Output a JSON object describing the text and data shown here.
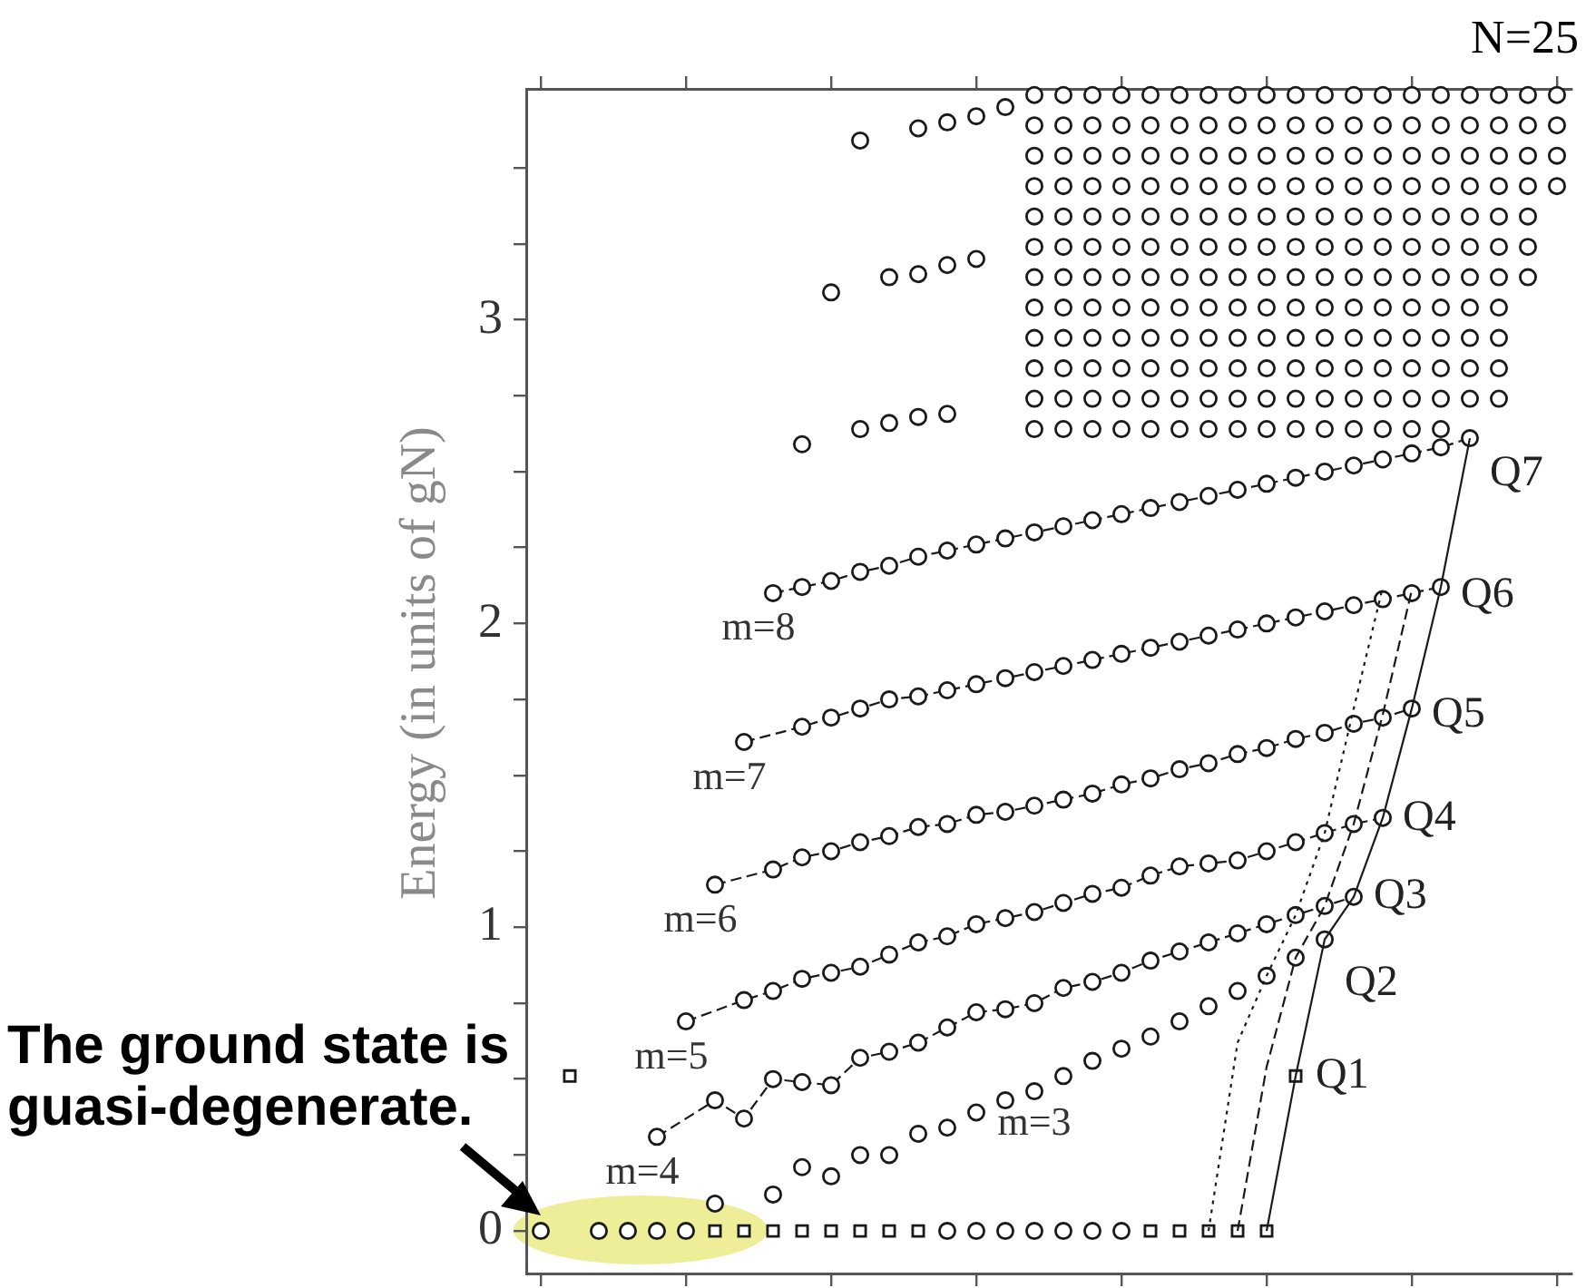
{
  "chart_data": {
    "type": "scatter",
    "title": "N=25",
    "ylabel": "Energy (in units of gN)",
    "categories": [
      null,
      null,
      null,
      null,
      null,
      null,
      null,
      null,
      null,
      null,
      null,
      null,
      null,
      null,
      null,
      null,
      null,
      null,
      null,
      null,
      null,
      null,
      null,
      null,
      null,
      null,
      null,
      null,
      null,
      null,
      null,
      null,
      null,
      null,
      null,
      null
    ],
    "ylim": [
      -0.14,
      3.76
    ],
    "yticks": [
      0,
      {
        "value": 0.25,
        "label": null
      },
      {
        "value": 0.5,
        "label": null
      },
      {
        "value": 0.75,
        "label": null
      },
      1,
      {
        "value": 1.25,
        "label": null
      },
      {
        "value": 1.5,
        "label": null
      },
      {
        "value": 1.75,
        "label": null
      },
      2,
      {
        "value": 2.25,
        "label": null
      },
      {
        "value": 2.5,
        "label": null
      },
      {
        "value": 2.75,
        "label": null
      },
      3,
      {
        "value": 3.25,
        "label": null
      },
      {
        "value": 3.5,
        "label": null
      }
    ],
    "tick_labels": "y",
    "series": [
      {
        "color": "#1a1a1a",
        "marker": "circle",
        "values": [
          0,
          null,
          0,
          0,
          0,
          0,
          null,
          null,
          null,
          null,
          null,
          null,
          null,
          null,
          0,
          0,
          0,
          0,
          0,
          0,
          0,
          null,
          null,
          null,
          null,
          null,
          null,
          null,
          null,
          null,
          null,
          null,
          null,
          null,
          null,
          null
        ]
      },
      {
        "color": "#1a1a1a",
        "marker": "square",
        "values": [
          null,
          null,
          null,
          null,
          null,
          null,
          0,
          0,
          0,
          0,
          0,
          0,
          0,
          0,
          null,
          null,
          null,
          null,
          null,
          null,
          null,
          0,
          0,
          0,
          0,
          0,
          null,
          null,
          null,
          null,
          null,
          null,
          null,
          null,
          null,
          null
        ]
      },
      {
        "color": "#1a1a1a",
        "marker": "square",
        "values": [
          null,
          0.51,
          null,
          null,
          null,
          null,
          null,
          null,
          null,
          null,
          null,
          null,
          null,
          null,
          null,
          null,
          null,
          null,
          null,
          null,
          null,
          null,
          null,
          null,
          null,
          null,
          0.51,
          null,
          null,
          null,
          null,
          null,
          null,
          null,
          null,
          null
        ]
      },
      {
        "name": "m=3",
        "color": "#1a1a1a",
        "marker": "circle",
        "values": [
          null,
          null,
          null,
          null,
          null,
          null,
          0.09,
          null,
          0.12,
          0.21,
          0.18,
          0.25,
          0.25,
          0.32,
          0.34,
          0.39,
          0.43,
          0.46,
          0.51,
          0.56,
          0.6,
          0.64,
          0.69,
          0.74,
          0.79,
          0.84,
          0.9,
          0.96,
          null,
          null,
          null,
          null,
          null,
          null,
          null,
          null
        ]
      },
      {
        "name": "m=4",
        "type": "line",
        "line_style": "dashed",
        "color": "#1a1a1a",
        "marker": "circle",
        "values": [
          null,
          null,
          null,
          null,
          0.31,
          null,
          0.43,
          0.37,
          0.5,
          0.49,
          0.48,
          0.57,
          0.59,
          0.62,
          0.67,
          0.72,
          0.73,
          0.75,
          0.8,
          0.82,
          0.85,
          0.89,
          0.92,
          0.95,
          0.98,
          1.01,
          1.04,
          1.07,
          1.1,
          null,
          null,
          null,
          null,
          null,
          null,
          null
        ]
      },
      {
        "name": "m=5",
        "type": "line",
        "line_style": "dashed",
        "color": "#1a1a1a",
        "marker": "circle",
        "values": [
          null,
          null,
          null,
          null,
          null,
          0.69,
          null,
          0.76,
          0.79,
          0.83,
          0.85,
          0.87,
          0.91,
          0.95,
          0.97,
          1.01,
          1.03,
          1.05,
          1.08,
          1.11,
          1.13,
          1.17,
          1.2,
          1.21,
          1.22,
          1.25,
          1.28,
          1.31,
          1.34,
          1.36,
          null,
          null,
          null,
          null,
          null,
          null
        ]
      },
      {
        "name": "m=6",
        "type": "line",
        "line_style": "dashed",
        "color": "#1a1a1a",
        "marker": "circle",
        "values": [
          null,
          null,
          null,
          null,
          null,
          null,
          1.14,
          null,
          1.19,
          1.23,
          1.25,
          1.28,
          1.3,
          1.33,
          1.34,
          1.37,
          1.38,
          1.4,
          1.42,
          1.44,
          1.47,
          1.49,
          1.52,
          1.54,
          1.57,
          1.59,
          1.62,
          1.64,
          1.67,
          1.69,
          1.72,
          null,
          null,
          null,
          null,
          null
        ]
      },
      {
        "name": "m=7",
        "type": "line",
        "line_style": "dashed",
        "color": "#1a1a1a",
        "marker": "circle",
        "values": [
          null,
          null,
          null,
          null,
          null,
          null,
          null,
          1.61,
          null,
          1.66,
          1.69,
          1.72,
          1.75,
          1.76,
          1.78,
          1.8,
          1.82,
          1.84,
          1.86,
          1.88,
          1.9,
          1.92,
          1.94,
          1.96,
          1.98,
          2.0,
          2.02,
          2.04,
          2.06,
          2.08,
          2.1,
          2.12,
          null,
          null,
          null,
          null
        ]
      },
      {
        "name": "m=8",
        "type": "line",
        "line_style": "dashed",
        "color": "#1a1a1a",
        "marker": "circle",
        "values": [
          null,
          null,
          null,
          null,
          null,
          null,
          null,
          null,
          2.1,
          2.12,
          2.14,
          2.17,
          2.19,
          2.22,
          2.24,
          2.26,
          2.28,
          2.3,
          2.32,
          2.34,
          2.36,
          2.38,
          2.4,
          2.42,
          2.44,
          2.46,
          2.48,
          2.5,
          2.52,
          2.54,
          2.56,
          2.58,
          2.61,
          null,
          null,
          null
        ]
      },
      {
        "type": "line",
        "line_style": "solid",
        "color": "#1a1a1a",
        "marker": "none",
        "values": [
          null,
          null,
          null,
          null,
          null,
          null,
          null,
          null,
          null,
          null,
          null,
          null,
          null,
          null,
          null,
          null,
          null,
          null,
          null,
          null,
          null,
          null,
          null,
          null,
          null,
          0,
          0.51,
          0.96,
          1.1,
          1.36,
          1.72,
          2.12,
          2.61,
          null,
          null,
          null
        ]
      },
      {
        "type": "line",
        "line_style": "dashed",
        "color": "#1a1a1a",
        "marker": "none",
        "values": [
          null,
          null,
          null,
          null,
          null,
          null,
          null,
          null,
          null,
          null,
          null,
          null,
          null,
          null,
          null,
          null,
          null,
          null,
          null,
          null,
          null,
          null,
          null,
          null,
          0,
          0.54,
          0.9,
          1.07,
          1.34,
          1.7,
          2.11,
          null,
          null,
          null,
          null,
          null
        ]
      },
      {
        "type": "line",
        "line_style": "dotted",
        "color": "#1a1a1a",
        "marker": "none",
        "values": [
          null,
          null,
          null,
          null,
          null,
          null,
          null,
          null,
          null,
          null,
          null,
          null,
          null,
          null,
          null,
          null,
          null,
          null,
          null,
          null,
          null,
          null,
          null,
          0,
          0.62,
          0.84,
          1.04,
          1.31,
          1.72,
          2.12,
          null,
          null,
          null,
          null,
          null,
          null
        ]
      },
      {
        "color": "#1a1a1a",
        "marker": "circle",
        "values": [
          null,
          null,
          null,
          null,
          null,
          null,
          null,
          null,
          null,
          2.59,
          null,
          2.64,
          2.66,
          2.68,
          2.69,
          null,
          null,
          null,
          null,
          null,
          null,
          null,
          null,
          null,
          null,
          null,
          null,
          null,
          null,
          null,
          null,
          null,
          null,
          null,
          null,
          null
        ]
      },
      {
        "color": "#1a1a1a",
        "marker": "circle",
        "values": [
          null,
          null,
          null,
          null,
          null,
          null,
          null,
          null,
          null,
          null,
          3.09,
          null,
          3.14,
          3.15,
          3.18,
          3.2,
          null,
          null,
          null,
          null,
          null,
          null,
          null,
          null,
          null,
          null,
          null,
          null,
          null,
          null,
          null,
          null,
          null,
          null,
          null,
          null
        ]
      },
      {
        "color": "#1a1a1a",
        "marker": "circle",
        "values": [
          null,
          null,
          null,
          null,
          null,
          null,
          null,
          null,
          null,
          null,
          null,
          3.59,
          null,
          3.63,
          3.65,
          3.67,
          3.7,
          null,
          null,
          null,
          null,
          null,
          null,
          null,
          null,
          null,
          null,
          null,
          null,
          null,
          null,
          null,
          null,
          null,
          null,
          null
        ]
      },
      {
        "color": "#1a1a1a",
        "marker": "circle",
        "values": [
          null,
          null,
          null,
          null,
          null,
          null,
          null,
          null,
          null,
          null,
          null,
          null,
          null,
          null,
          null,
          null,
          null,
          2.64,
          2.64,
          2.64,
          2.64,
          2.64,
          2.64,
          2.64,
          2.64,
          2.64,
          2.64,
          2.64,
          2.64,
          2.64,
          2.64,
          2.64,
          null,
          null,
          null,
          null
        ]
      },
      {
        "color": "#1a1a1a",
        "marker": "circle",
        "values": [
          null,
          null,
          null,
          null,
          null,
          null,
          null,
          null,
          null,
          null,
          null,
          null,
          null,
          null,
          null,
          null,
          null,
          2.74,
          2.74,
          2.74,
          2.74,
          2.74,
          2.74,
          2.74,
          2.74,
          2.74,
          2.74,
          2.74,
          2.74,
          2.74,
          2.74,
          2.74,
          2.74,
          2.74,
          null,
          null
        ]
      },
      {
        "color": "#1a1a1a",
        "marker": "circle",
        "values": [
          null,
          null,
          null,
          null,
          null,
          null,
          null,
          null,
          null,
          null,
          null,
          null,
          null,
          null,
          null,
          null,
          null,
          2.84,
          2.84,
          2.84,
          2.84,
          2.84,
          2.84,
          2.84,
          2.84,
          2.84,
          2.84,
          2.84,
          2.84,
          2.84,
          2.84,
          2.84,
          2.84,
          2.84,
          null,
          null
        ]
      },
      {
        "color": "#1a1a1a",
        "marker": "circle",
        "values": [
          null,
          null,
          null,
          null,
          null,
          null,
          null,
          null,
          null,
          null,
          null,
          null,
          null,
          null,
          null,
          null,
          null,
          2.94,
          2.94,
          2.94,
          2.94,
          2.94,
          2.94,
          2.94,
          2.94,
          2.94,
          2.94,
          2.94,
          2.94,
          2.94,
          2.94,
          2.94,
          2.94,
          2.94,
          null,
          null
        ]
      },
      {
        "color": "#1a1a1a",
        "marker": "circle",
        "values": [
          null,
          null,
          null,
          null,
          null,
          null,
          null,
          null,
          null,
          null,
          null,
          null,
          null,
          null,
          null,
          null,
          null,
          3.04,
          3.04,
          3.04,
          3.04,
          3.04,
          3.04,
          3.04,
          3.04,
          3.04,
          3.04,
          3.04,
          3.04,
          3.04,
          3.04,
          3.04,
          3.04,
          3.04,
          null,
          null
        ]
      },
      {
        "color": "#1a1a1a",
        "marker": "circle",
        "values": [
          null,
          null,
          null,
          null,
          null,
          null,
          null,
          null,
          null,
          null,
          null,
          null,
          null,
          null,
          null,
          null,
          null,
          3.14,
          3.14,
          3.14,
          3.14,
          3.14,
          3.14,
          3.14,
          3.14,
          3.14,
          3.14,
          3.14,
          3.14,
          3.14,
          3.14,
          3.14,
          3.14,
          3.14,
          3.14,
          null
        ]
      },
      {
        "color": "#1a1a1a",
        "marker": "circle",
        "values": [
          null,
          null,
          null,
          null,
          null,
          null,
          null,
          null,
          null,
          null,
          null,
          null,
          null,
          null,
          null,
          null,
          null,
          3.24,
          3.24,
          3.24,
          3.24,
          3.24,
          3.24,
          3.24,
          3.24,
          3.24,
          3.24,
          3.24,
          3.24,
          3.24,
          3.24,
          3.24,
          3.24,
          3.24,
          3.24,
          null
        ]
      },
      {
        "color": "#1a1a1a",
        "marker": "circle",
        "values": [
          null,
          null,
          null,
          null,
          null,
          null,
          null,
          null,
          null,
          null,
          null,
          null,
          null,
          null,
          null,
          null,
          null,
          3.34,
          3.34,
          3.34,
          3.34,
          3.34,
          3.34,
          3.34,
          3.34,
          3.34,
          3.34,
          3.34,
          3.34,
          3.34,
          3.34,
          3.34,
          3.34,
          3.34,
          3.34,
          null
        ]
      },
      {
        "color": "#1a1a1a",
        "marker": "circle",
        "values": [
          null,
          null,
          null,
          null,
          null,
          null,
          null,
          null,
          null,
          null,
          null,
          null,
          null,
          null,
          null,
          null,
          null,
          3.44,
          3.44,
          3.44,
          3.44,
          3.44,
          3.44,
          3.44,
          3.44,
          3.44,
          3.44,
          3.44,
          3.44,
          3.44,
          3.44,
          3.44,
          3.44,
          3.44,
          3.44,
          3.44
        ]
      },
      {
        "color": "#1a1a1a",
        "marker": "circle",
        "values": [
          null,
          null,
          null,
          null,
          null,
          null,
          null,
          null,
          null,
          null,
          null,
          null,
          null,
          null,
          null,
          null,
          null,
          3.54,
          3.54,
          3.54,
          3.54,
          3.54,
          3.54,
          3.54,
          3.54,
          3.54,
          3.54,
          3.54,
          3.54,
          3.54,
          3.54,
          3.54,
          3.54,
          3.54,
          3.54,
          3.54
        ]
      },
      {
        "color": "#1a1a1a",
        "marker": "circle",
        "values": [
          null,
          null,
          null,
          null,
          null,
          null,
          null,
          null,
          null,
          null,
          null,
          null,
          null,
          null,
          null,
          null,
          null,
          3.64,
          3.64,
          3.64,
          3.64,
          3.64,
          3.64,
          3.64,
          3.64,
          3.64,
          3.64,
          3.64,
          3.64,
          3.64,
          3.64,
          3.64,
          3.64,
          3.64,
          3.64,
          3.64
        ]
      },
      {
        "color": "#1a1a1a",
        "marker": "circle",
        "values": [
          null,
          null,
          null,
          null,
          null,
          null,
          null,
          null,
          null,
          null,
          null,
          null,
          null,
          null,
          null,
          null,
          null,
          3.74,
          3.74,
          3.74,
          3.74,
          3.74,
          3.74,
          3.74,
          3.74,
          3.74,
          3.74,
          3.74,
          3.74,
          3.74,
          3.74,
          3.74,
          3.74,
          3.74,
          3.74,
          3.74
        ]
      }
    ],
    "annotations": [
      "Q1",
      "Q2",
      "Q3",
      "Q4",
      "Q5",
      "Q6",
      "Q7",
      "The ground state is guasi-degenerate."
    ]
  }
}
